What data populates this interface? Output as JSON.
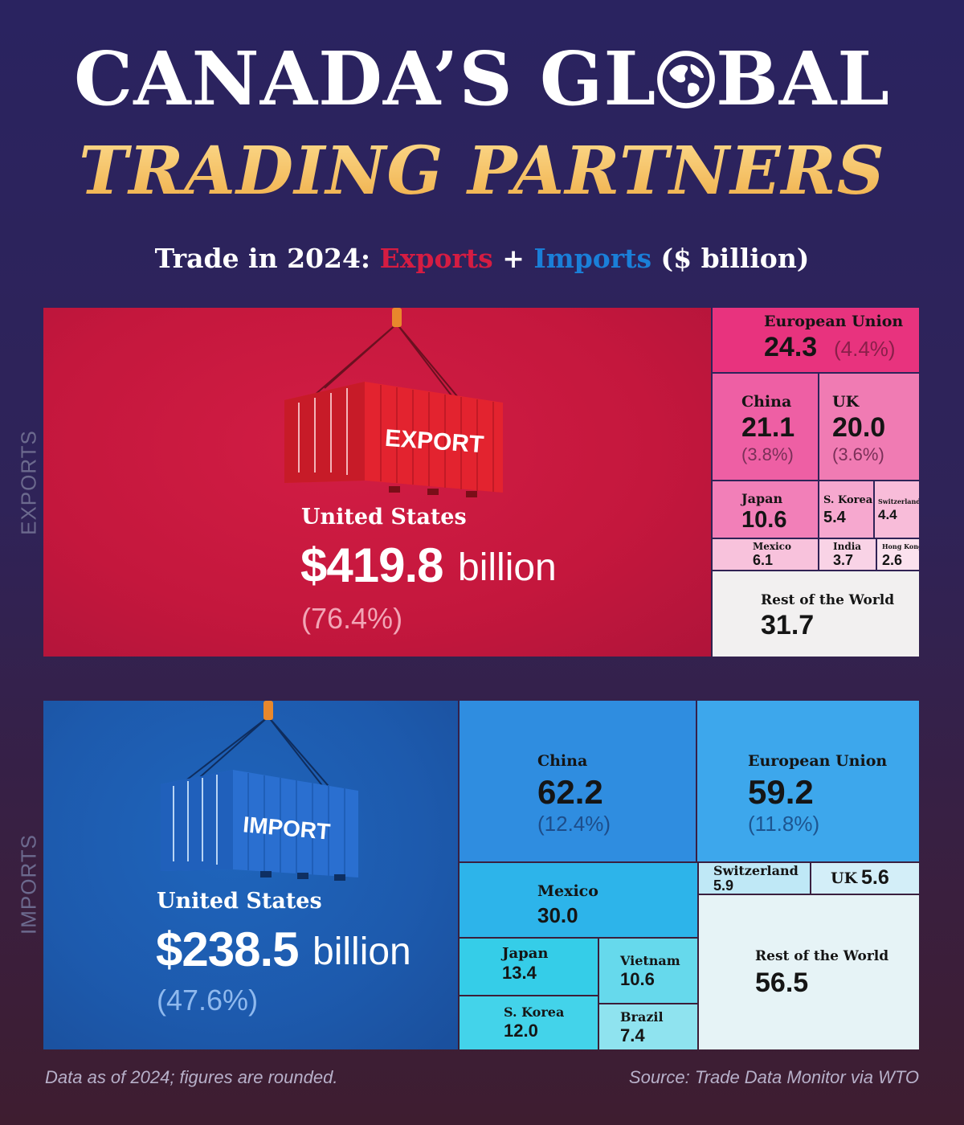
{
  "title": {
    "line1_part1": "CANADA’S GL",
    "line1_part2": "BAL",
    "line2": "TRADING PARTNERS"
  },
  "subtitle": {
    "prefix": "Trade in 2024: ",
    "exports": "Exports",
    "plus": " + ",
    "imports": "Imports",
    "suffix": " ($ billion)"
  },
  "icons": {
    "globe": "globe-icon",
    "export_container": "shipping-container-icon",
    "import_container": "shipping-container-icon"
  },
  "colors": {
    "exports_main": "#c8163f",
    "imports_main": "#1d5bb0"
  },
  "chart_data": [
    {
      "type": "treemap",
      "side_label": "EXPORTS",
      "container_label": "EXPORT",
      "main": {
        "name": "United States",
        "value": 419.8,
        "value_text": "$419.8",
        "unit": "billion",
        "pct": "(76.4%)"
      },
      "items": [
        {
          "name": "European Union",
          "value": 24.3,
          "value_text": "24.3",
          "pct": "(4.4%)"
        },
        {
          "name": "China",
          "value": 21.1,
          "value_text": "21.1",
          "pct": "(3.8%)"
        },
        {
          "name": "UK",
          "value": 20.0,
          "value_text": "20.0",
          "pct": "(3.6%)"
        },
        {
          "name": "Japan",
          "value": 10.6,
          "value_text": "10.6"
        },
        {
          "name": "S. Korea",
          "value": 5.4,
          "value_text": "5.4"
        },
        {
          "name": "Switzerland",
          "value": 4.4,
          "value_text": "4.4"
        },
        {
          "name": "Mexico",
          "value": 6.1,
          "value_text": "6.1"
        },
        {
          "name": "India",
          "value": 3.7,
          "value_text": "3.7"
        },
        {
          "name": "Hong Kong",
          "value": 2.6,
          "value_text": "2.6"
        },
        {
          "name": "Rest of the World",
          "value": 31.7,
          "value_text": "31.7"
        }
      ]
    },
    {
      "type": "treemap",
      "side_label": "IMPORTS",
      "container_label": "IMPORT",
      "main": {
        "name": "United States",
        "value": 238.5,
        "value_text": "$238.5",
        "unit": "billion",
        "pct": "(47.6%)"
      },
      "items": [
        {
          "name": "China",
          "value": 62.2,
          "value_text": "62.2",
          "pct": "(12.4%)"
        },
        {
          "name": "European Union",
          "value": 59.2,
          "value_text": "59.2",
          "pct": "(11.8%)"
        },
        {
          "name": "Mexico",
          "value": 30.0,
          "value_text": "30.0"
        },
        {
          "name": "Switzerland",
          "value": 5.9,
          "value_text": "5.9"
        },
        {
          "name": "UK",
          "value": 5.6,
          "value_text": "5.6"
        },
        {
          "name": "Rest of the World",
          "value": 56.5,
          "value_text": "56.5"
        },
        {
          "name": "Japan",
          "value": 13.4,
          "value_text": "13.4"
        },
        {
          "name": "Vietnam",
          "value": 10.6,
          "value_text": "10.6"
        },
        {
          "name": "S. Korea",
          "value": 12.0,
          "value_text": "12.0"
        },
        {
          "name": "Brazil",
          "value": 7.4,
          "value_text": "7.4"
        }
      ]
    }
  ],
  "footer": {
    "note": "Data as of 2024; figures are rounded.",
    "source": "Source: Trade Data Monitor via WTO"
  }
}
